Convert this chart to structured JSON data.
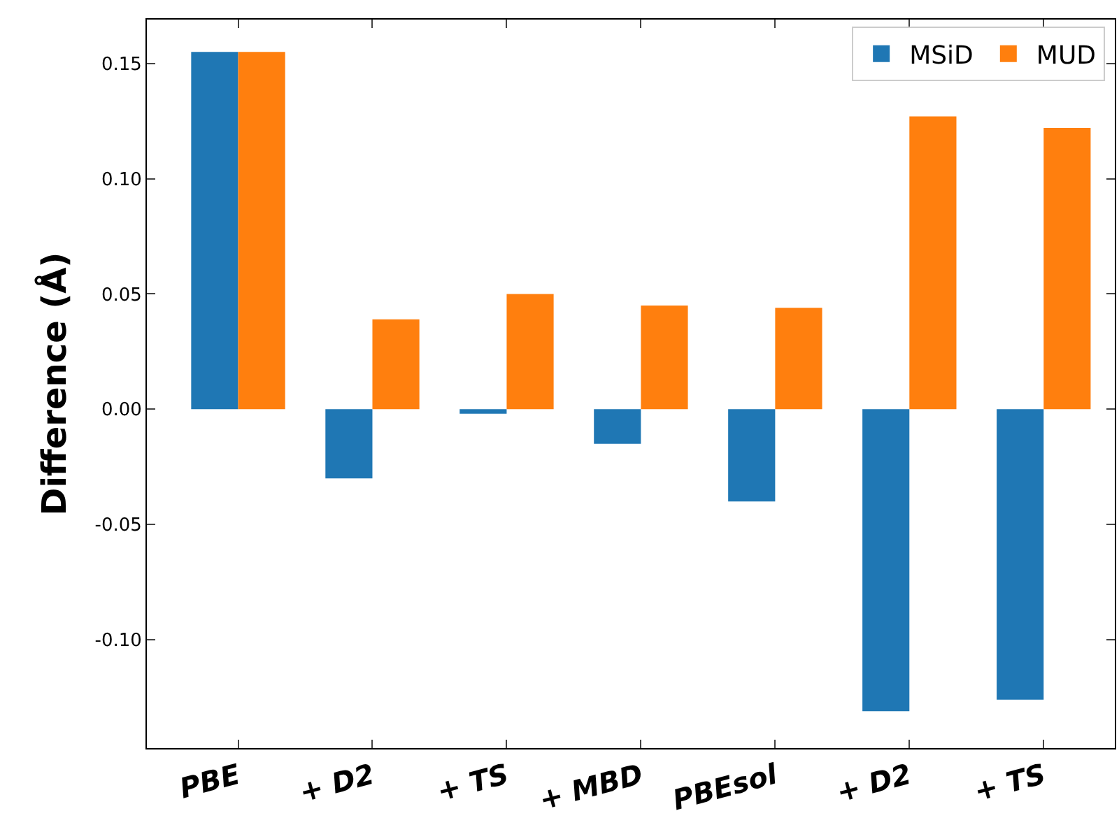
{
  "chart_data": {
    "type": "bar",
    "ylabel": "Difference (Å)",
    "categories": [
      "PBE",
      "+ D2",
      "+ TS",
      "+ MBD",
      "PBEsol",
      "+ D2",
      "+ TS"
    ],
    "series": [
      {
        "name": "MSiD",
        "color": "#1f77b4",
        "values": [
          0.155,
          -0.03,
          -0.002,
          -0.015,
          -0.04,
          -0.131,
          -0.126
        ]
      },
      {
        "name": "MUD",
        "color": "#ff7f0e",
        "values": [
          0.155,
          0.039,
          0.05,
          0.045,
          0.044,
          0.127,
          0.122
        ]
      }
    ],
    "ylim": [
      -0.147,
      0.169
    ],
    "yticks": [
      {
        "value": -0.1,
        "label": "-0.10"
      },
      {
        "value": -0.05,
        "label": "-0.05"
      },
      {
        "value": 0,
        "label": "0.00"
      },
      {
        "value": 0.05,
        "label": "0.05"
      },
      {
        "value": 0.1,
        "label": "0.10"
      },
      {
        "value": 0.15,
        "label": "0.15"
      }
    ],
    "grid": false,
    "legend": "top right"
  }
}
